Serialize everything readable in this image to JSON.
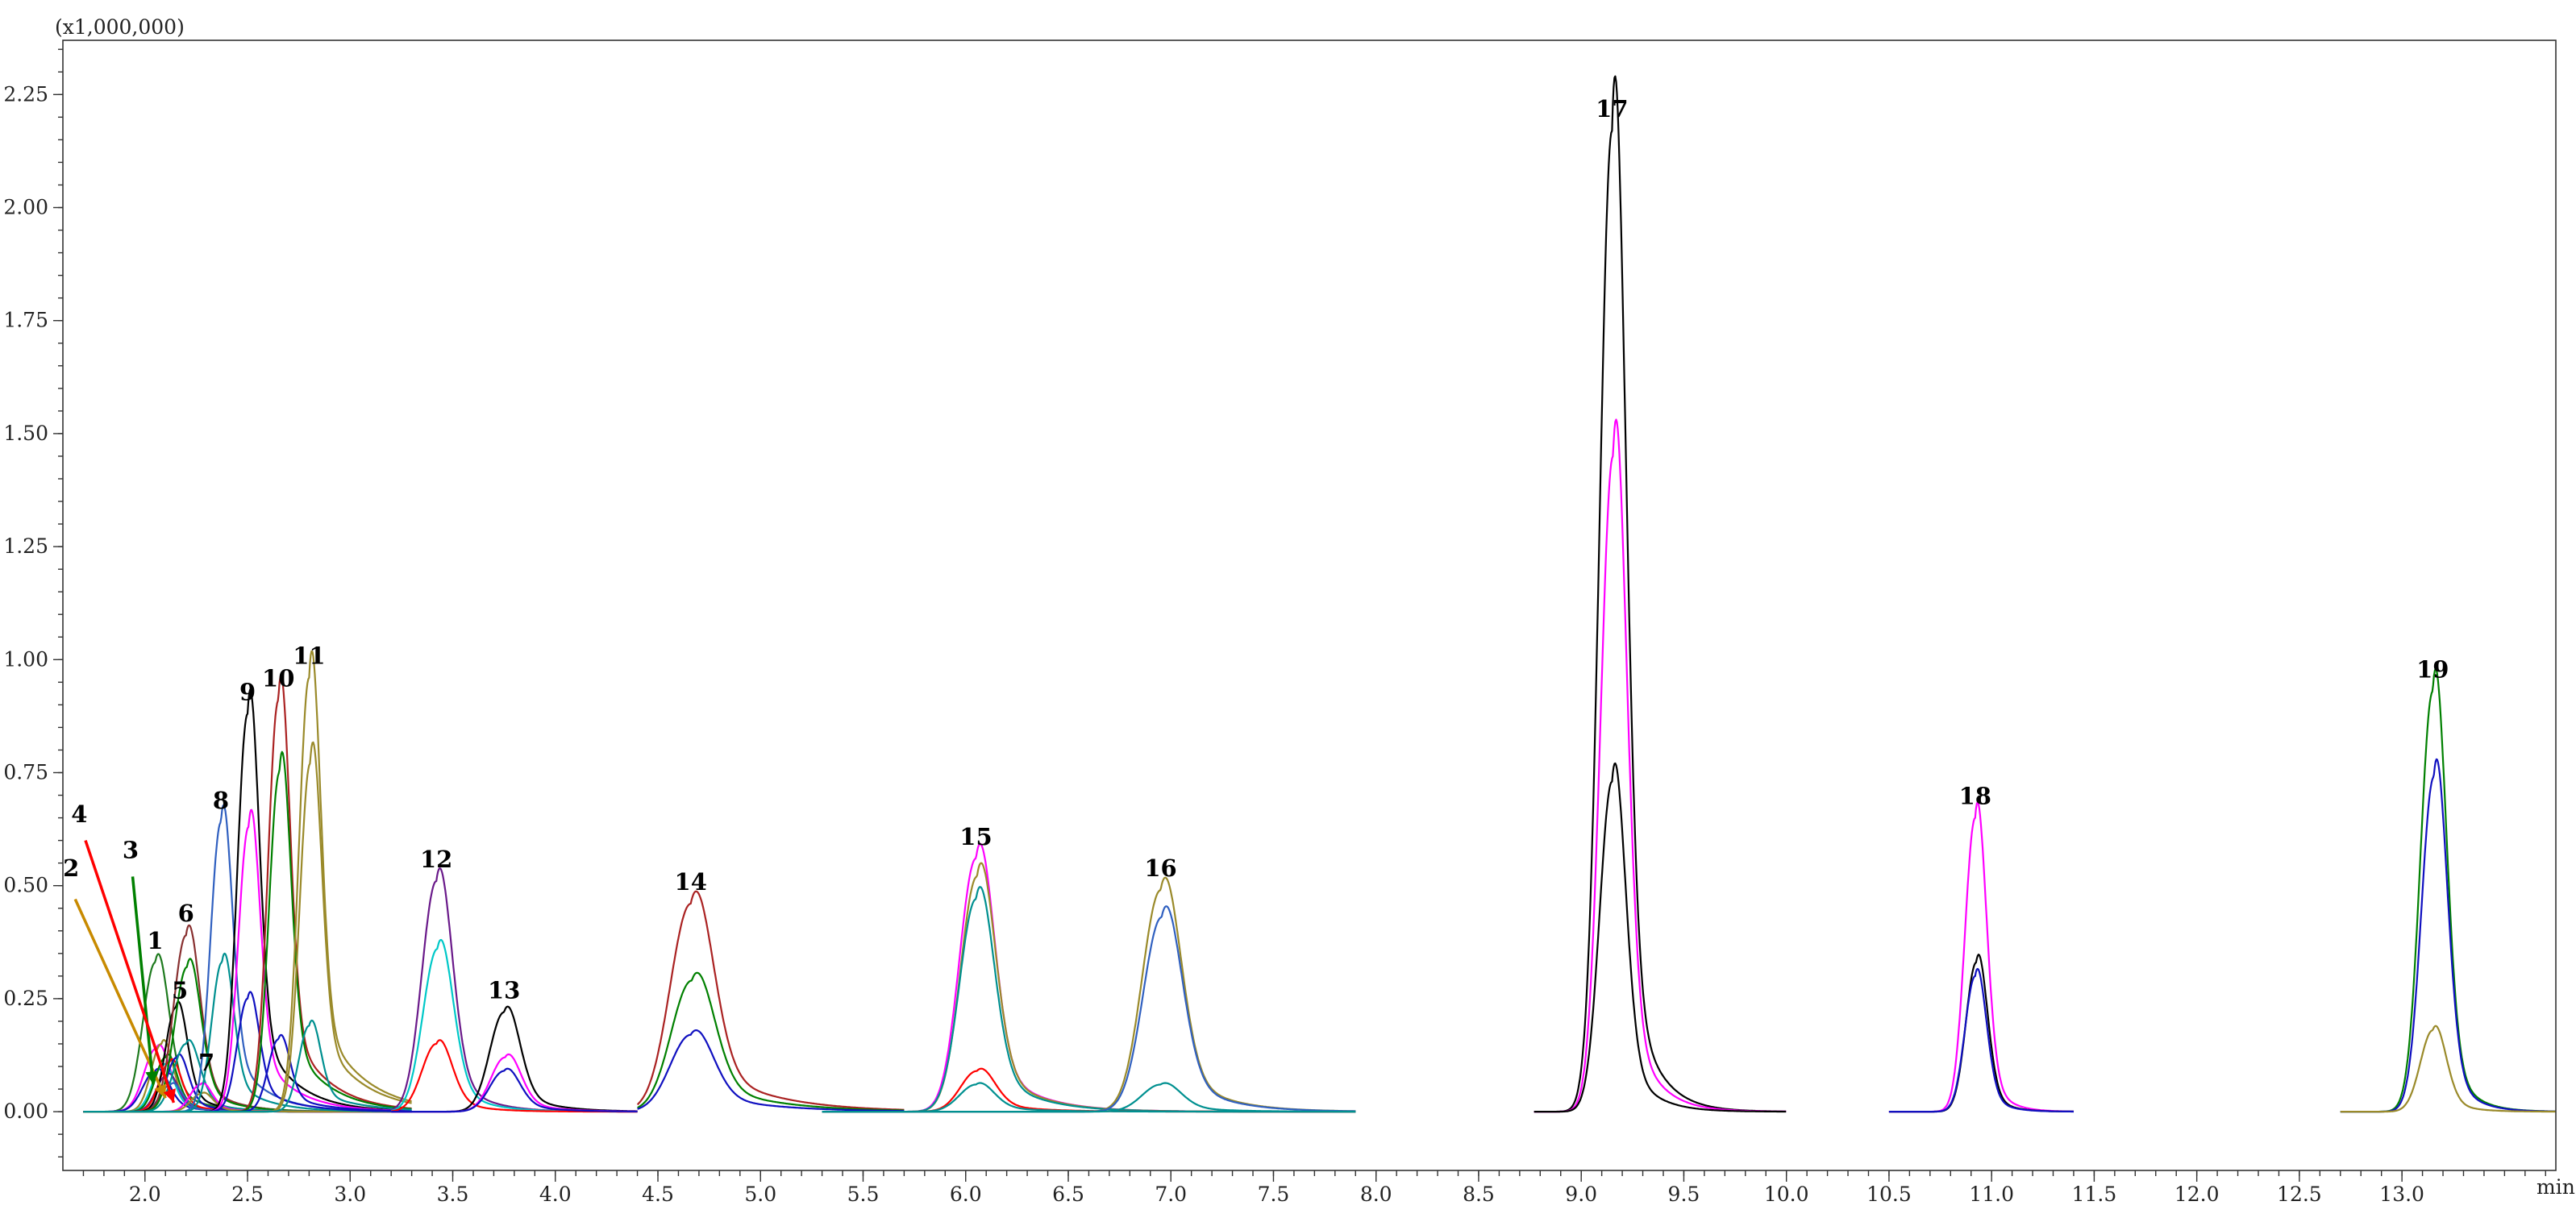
{
  "chart_data": {
    "type": "line",
    "title": "",
    "xlabel": "min",
    "ylabel": "",
    "y_scale_label": "(x1,000,000)",
    "xlim": [
      1.6,
      13.75
    ],
    "ylim": [
      -0.13,
      2.37
    ],
    "x_ticks": [
      "2.0",
      "2.5",
      "3.0",
      "3.5",
      "4.0",
      "4.5",
      "5.0",
      "5.5",
      "6.0",
      "6.5",
      "7.0",
      "7.5",
      "8.0",
      "8.5",
      "9.0",
      "9.5",
      "10.0",
      "10.5",
      "11.0",
      "11.5",
      "12.0",
      "12.5",
      "13.0"
    ],
    "x_tick_values": [
      2.0,
      2.5,
      3.0,
      3.5,
      4.0,
      4.5,
      5.0,
      5.5,
      6.0,
      6.5,
      7.0,
      7.5,
      8.0,
      8.5,
      9.0,
      9.5,
      10.0,
      10.5,
      11.0,
      11.5,
      12.0,
      12.5,
      13.0
    ],
    "y_ticks": [
      "0.00",
      "0.25",
      "0.50",
      "0.75",
      "1.00",
      "1.25",
      "1.50",
      "1.75",
      "2.00",
      "2.25"
    ],
    "y_tick_values": [
      0.0,
      0.25,
      0.5,
      0.75,
      1.0,
      1.25,
      1.5,
      1.75,
      2.0,
      2.25
    ],
    "grid": false,
    "colors": {
      "black": "#000000",
      "magenta": "#ff00ff",
      "red": "#ff0000",
      "green": "#008000",
      "darkgreen": "#1e7a1e",
      "olive": "#9a8a2a",
      "blue": "#1010c0",
      "cyan": "#00c8c8",
      "teal": "#009090",
      "darkred": "#aa2222",
      "purple": "#6a1a8a",
      "steelblue": "#3060c0",
      "maroon": "#883030",
      "orange": "#c88a00"
    },
    "segments": [
      {
        "start": 1.7,
        "end": 3.3
      },
      {
        "start": 3.2,
        "end": 4.4
      },
      {
        "start": 4.4,
        "end": 5.7
      },
      {
        "start": 5.3,
        "end": 7.9
      },
      {
        "start": 8.77,
        "end": 10.0
      },
      {
        "start": 10.5,
        "end": 11.4
      },
      {
        "start": 12.7,
        "end": 13.75
      }
    ],
    "peaks": [
      {
        "name": "1",
        "rt": 2.05,
        "values": [
          {
            "h": 0.33,
            "c": "darkgreen"
          },
          {
            "h": 0.14,
            "c": "magenta"
          },
          {
            "h": 0.09,
            "c": "blue"
          }
        ],
        "w": 0.06,
        "tail": 0.14
      },
      {
        "name": "2",
        "rt": 2.08,
        "values": [
          {
            "h": 0.15,
            "c": "olive"
          },
          {
            "h": 0.1,
            "c": "cyan"
          }
        ],
        "w": 0.05,
        "tail": 0.12
      },
      {
        "name": "3",
        "rt": 2.1,
        "values": [
          {
            "h": 0.12,
            "c": "green"
          },
          {
            "h": 0.08,
            "c": "purple"
          }
        ],
        "w": 0.05,
        "tail": 0.12
      },
      {
        "name": "4",
        "rt": 2.12,
        "values": [
          {
            "h": 0.11,
            "c": "red"
          },
          {
            "h": 0.06,
            "c": "steelblue"
          }
        ],
        "w": 0.05,
        "tail": 0.12
      },
      {
        "name": "5",
        "rt": 2.15,
        "values": [
          {
            "h": 0.23,
            "c": "black"
          },
          {
            "h": 0.12,
            "c": "blue"
          }
        ],
        "w": 0.05,
        "tail": 0.13
      },
      {
        "name": "6",
        "rt": 2.2,
        "values": [
          {
            "h": 0.39,
            "c": "maroon"
          },
          {
            "h": 0.32,
            "c": "green"
          },
          {
            "h": 0.15,
            "c": "teal"
          }
        ],
        "w": 0.06,
        "tail": 0.14
      },
      {
        "name": "7",
        "rt": 2.27,
        "values": [
          {
            "h": 0.06,
            "c": "magenta"
          },
          {
            "h": 0.04,
            "c": "olive"
          }
        ],
        "w": 0.05,
        "tail": 0.12
      },
      {
        "name": "8",
        "rt": 2.37,
        "values": [
          {
            "h": 0.64,
            "c": "steelblue"
          },
          {
            "h": 0.33,
            "c": "teal"
          }
        ],
        "w": 0.05,
        "tail": 0.16
      },
      {
        "name": "9",
        "rt": 2.5,
        "values": [
          {
            "h": 0.88,
            "c": "black"
          },
          {
            "h": 0.63,
            "c": "magenta"
          },
          {
            "h": 0.25,
            "c": "blue"
          }
        ],
        "w": 0.05,
        "tail": 0.17
      },
      {
        "name": "10",
        "rt": 2.65,
        "values": [
          {
            "h": 0.91,
            "c": "darkred"
          },
          {
            "h": 0.75,
            "c": "green"
          },
          {
            "h": 0.16,
            "c": "blue"
          }
        ],
        "w": 0.05,
        "tail": 0.18
      },
      {
        "name": "11",
        "rt": 2.8,
        "values": [
          {
            "h": 0.96,
            "c": "olive"
          },
          {
            "h": 0.77,
            "c": "olive"
          },
          {
            "h": 0.19,
            "c": "teal"
          }
        ],
        "w": 0.05,
        "tail": 0.2
      },
      {
        "name": "12",
        "rt": 3.42,
        "values": [
          {
            "h": 0.51,
            "c": "purple"
          },
          {
            "h": 0.36,
            "c": "cyan"
          },
          {
            "h": 0.15,
            "c": "red"
          }
        ],
        "w": 0.07,
        "tail": 0.14
      },
      {
        "name": "13",
        "rt": 3.75,
        "values": [
          {
            "h": 0.22,
            "c": "black"
          },
          {
            "h": 0.12,
            "c": "magenta"
          },
          {
            "h": 0.09,
            "c": "blue"
          }
        ],
        "w": 0.07,
        "tail": 0.16
      },
      {
        "name": "14",
        "rt": 4.66,
        "values": [
          {
            "h": 0.46,
            "c": "darkred"
          },
          {
            "h": 0.29,
            "c": "green"
          },
          {
            "h": 0.17,
            "c": "blue"
          }
        ],
        "w": 0.1,
        "tail": 0.3
      },
      {
        "name": "15",
        "rt": 6.05,
        "values": [
          {
            "h": 0.56,
            "c": "magenta"
          },
          {
            "h": 0.52,
            "c": "olive"
          },
          {
            "h": 0.47,
            "c": "teal"
          },
          {
            "h": 0.09,
            "c": "red"
          },
          {
            "h": 0.06,
            "c": "teal"
          }
        ],
        "w": 0.08,
        "tail": 0.2
      },
      {
        "name": "16",
        "rt": 6.95,
        "values": [
          {
            "h": 0.49,
            "c": "olive"
          },
          {
            "h": 0.43,
            "c": "steelblue"
          },
          {
            "h": 0.06,
            "c": "teal"
          }
        ],
        "w": 0.09,
        "tail": 0.2
      },
      {
        "name": "17",
        "rt": 9.15,
        "values": [
          {
            "h": 2.17,
            "c": "black"
          },
          {
            "h": 1.45,
            "c": "magenta"
          },
          {
            "h": 0.73,
            "c": "black"
          }
        ],
        "w": 0.06,
        "tail": 0.12
      },
      {
        "name": "18",
        "rt": 10.92,
        "values": [
          {
            "h": 0.65,
            "c": "magenta"
          },
          {
            "h": 0.33,
            "c": "black"
          },
          {
            "h": 0.3,
            "c": "blue"
          }
        ],
        "w": 0.05,
        "tail": 0.08
      },
      {
        "name": "19",
        "rt": 13.15,
        "values": [
          {
            "h": 0.93,
            "c": "green"
          },
          {
            "h": 0.74,
            "c": "blue"
          },
          {
            "h": 0.18,
            "c": "olive"
          }
        ],
        "w": 0.06,
        "tail": 0.1
      }
    ],
    "label_positions": {
      "1": {
        "x": 2.05,
        "y": 0.35
      },
      "2": {
        "x": 1.64,
        "y": 0.51
      },
      "3": {
        "x": 1.93,
        "y": 0.55
      },
      "4": {
        "x": 1.68,
        "y": 0.63
      },
      "5": {
        "x": 2.17,
        "y": 0.24
      },
      "6": {
        "x": 2.2,
        "y": 0.41
      },
      "7": {
        "x": 2.3,
        "y": 0.08
      },
      "8": {
        "x": 2.37,
        "y": 0.66
      },
      "9": {
        "x": 2.5,
        "y": 0.9
      },
      "10": {
        "x": 2.65,
        "y": 0.93
      },
      "11": {
        "x": 2.8,
        "y": 0.98
      },
      "12": {
        "x": 3.42,
        "y": 0.53
      },
      "13": {
        "x": 3.75,
        "y": 0.24
      },
      "14": {
        "x": 4.66,
        "y": 0.48
      },
      "15": {
        "x": 6.05,
        "y": 0.58
      },
      "16": {
        "x": 6.95,
        "y": 0.51
      },
      "17": {
        "x": 9.15,
        "y": 2.19
      },
      "18": {
        "x": 10.92,
        "y": 0.67
      },
      "19": {
        "x": 13.15,
        "y": 0.95
      }
    },
    "arrows": [
      {
        "from": "2",
        "from_xy": [
          1.66,
          0.47
        ],
        "to_xy": [
          2.1,
          0.03
        ],
        "c": "orange"
      },
      {
        "from": "3",
        "from_xy": [
          1.94,
          0.52
        ],
        "to_xy": [
          2.04,
          0.06
        ],
        "c": "green"
      },
      {
        "from": "4",
        "from_xy": [
          1.71,
          0.6
        ],
        "to_xy": [
          2.14,
          0.02
        ],
        "c": "red"
      }
    ]
  }
}
